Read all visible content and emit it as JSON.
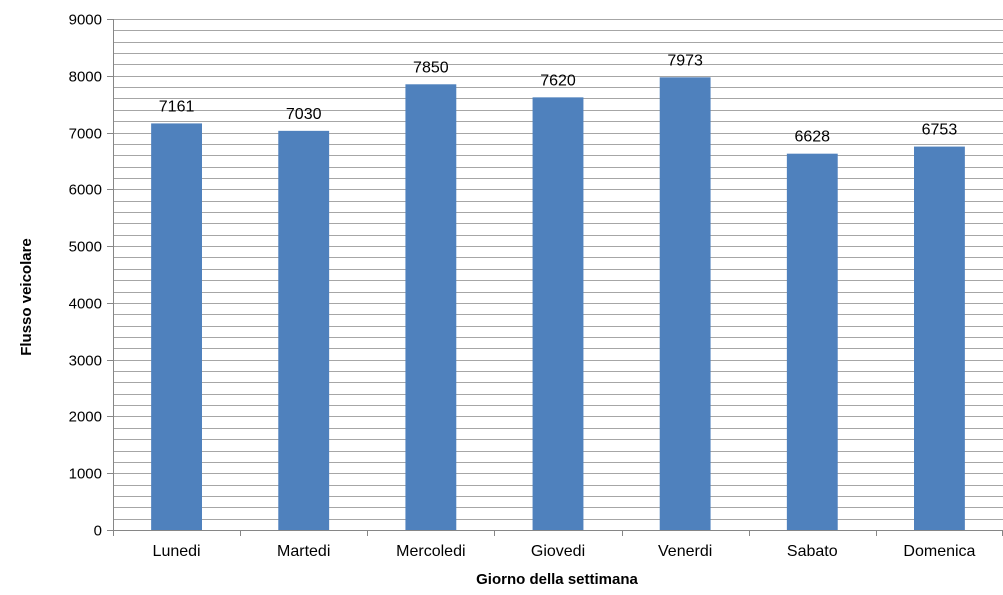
{
  "chart_data": {
    "type": "bar",
    "categories": [
      "Lunedi",
      "Martedi",
      "Mercoledi",
      "Giovedi",
      "Venerdi",
      "Sabato",
      "Domenica"
    ],
    "values": [
      7161,
      7030,
      7850,
      7620,
      7973,
      6628,
      6753
    ],
    "data_labels": [
      "7161",
      "7030",
      "7850",
      "7620",
      "7973",
      "6628",
      "6753"
    ],
    "xlabel": "Giorno della settimana",
    "ylabel": "Flusso veicolare",
    "ylim": [
      0,
      9000
    ],
    "yticks": [
      0,
      1000,
      2000,
      3000,
      4000,
      5000,
      6000,
      7000,
      8000,
      9000
    ],
    "ytick_labels": [
      "0",
      "1000",
      "2000",
      "3000",
      "4000",
      "5000",
      "6000",
      "7000",
      "8000",
      "9000"
    ],
    "minor_grid_step": 200,
    "grid": true,
    "legend": "none",
    "bar_color": "#4F81BD",
    "grid_color": "#A6A6A6",
    "axis_color": "#868686"
  }
}
